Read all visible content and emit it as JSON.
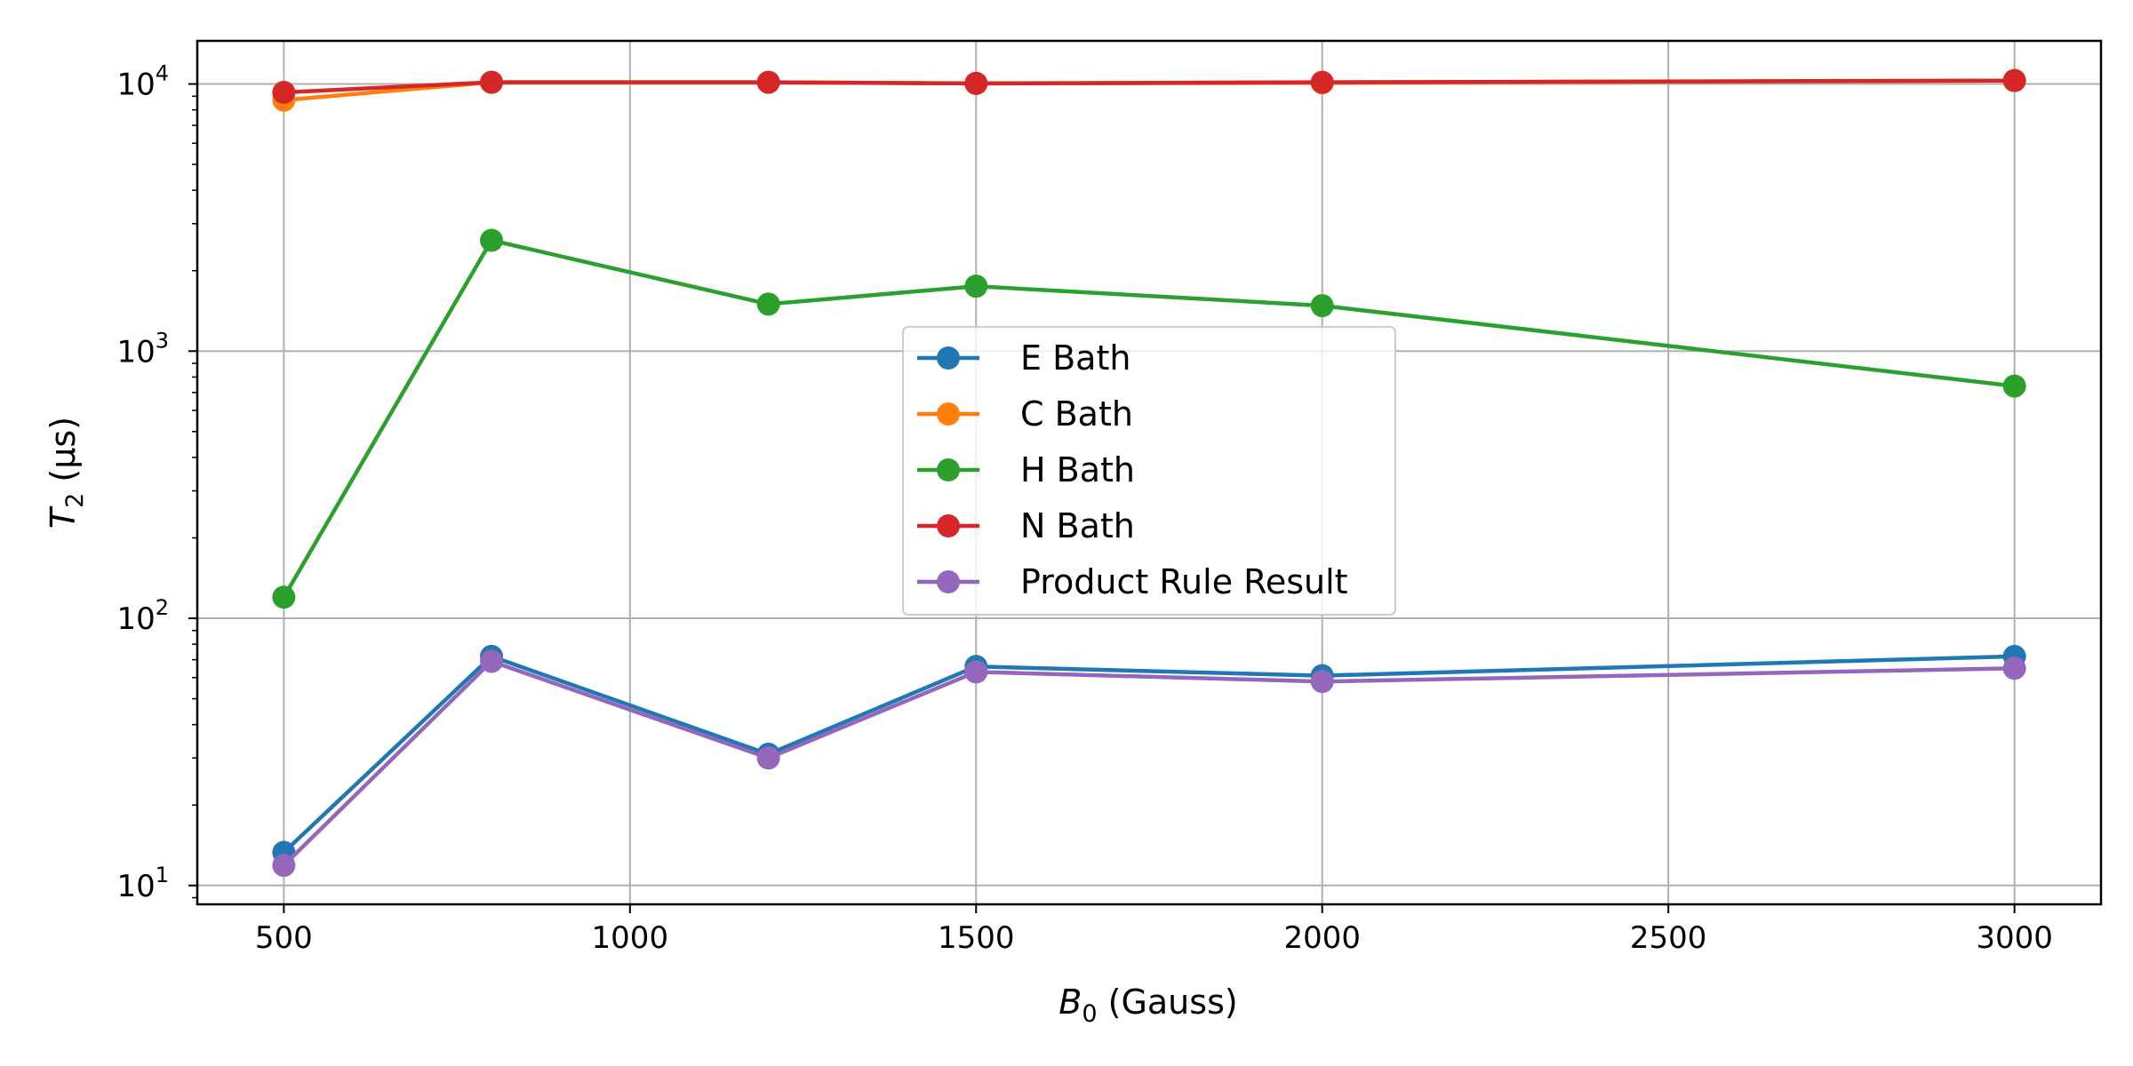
{
  "chart_data": {
    "type": "line",
    "title": "",
    "xlabel": {
      "main": "B",
      "sub": "0",
      "rest": " (Gauss)"
    },
    "ylabel": {
      "main": "T",
      "sub": "2",
      "rest": " (μs)"
    },
    "x": [
      500,
      800,
      1200,
      1500,
      2000,
      3000
    ],
    "xlim": [
      375,
      3125
    ],
    "ylim": [
      8.5,
      14500
    ],
    "yscale": "log",
    "xticks": [
      500,
      1000,
      1500,
      2000,
      2500,
      3000
    ],
    "yticks": [
      {
        "value": 10,
        "base": "10",
        "exp": "1"
      },
      {
        "value": 100,
        "base": "10",
        "exp": "2"
      },
      {
        "value": 1000,
        "base": "10",
        "exp": "3"
      },
      {
        "value": 10000,
        "base": "10",
        "exp": "4"
      }
    ],
    "grid": true,
    "legend_position": "center",
    "series": [
      {
        "name": "E Bath",
        "color": "#1f77b4",
        "values": [
          13.3,
          72,
          31,
          66,
          61,
          72
        ]
      },
      {
        "name": "C Bath",
        "color": "#ff7f0e",
        "values": [
          8700,
          10150,
          10150,
          10050,
          10100,
          10300
        ]
      },
      {
        "name": "H Bath",
        "color": "#2ca02c",
        "values": [
          120,
          2600,
          1500,
          1750,
          1480,
          740
        ]
      },
      {
        "name": "N Bath",
        "color": "#d62728",
        "values": [
          9300,
          10150,
          10150,
          10050,
          10150,
          10300
        ]
      },
      {
        "name": "Product Rule Result",
        "color": "#9467bd",
        "values": [
          11.9,
          69,
          30,
          63,
          58,
          65
        ]
      }
    ]
  }
}
